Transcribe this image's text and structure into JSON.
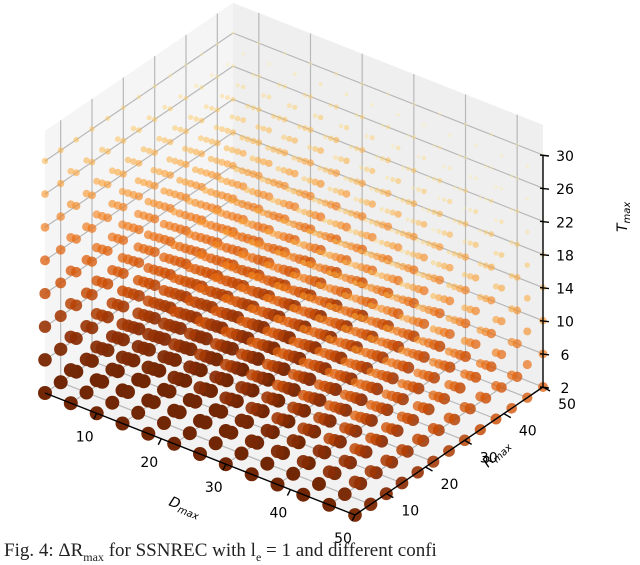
{
  "chart_data": {
    "type": "scatter",
    "projection": "3d",
    "title": "",
    "xlabel": "D_max",
    "ylabel": "R_max",
    "zlabel": "T_max",
    "x_ticks": [
      10,
      20,
      30,
      40,
      50
    ],
    "y_ticks": [
      10,
      20,
      30,
      40,
      50
    ],
    "z_ticks": [
      2,
      6,
      10,
      14,
      18,
      22,
      26,
      30
    ],
    "xlim": [
      2,
      50
    ],
    "ylim": [
      2,
      50
    ],
    "zlim": [
      2,
      30
    ],
    "grid": true,
    "grid_x_values": [
      6,
      14,
      22,
      30,
      38,
      46
    ],
    "grid_y_values": [
      6,
      14,
      22,
      30,
      38,
      46
    ],
    "grid_z_values": [
      2,
      6,
      10,
      14,
      18,
      22,
      26,
      30
    ],
    "colormap": "YlOrBr",
    "marker_size_and_color_encode": "ΔR_max (larger/darker = higher)",
    "description": "Grid of configurations (D_max, R_max, T_max); point size and color intensity increase as T_max decreases and D_max, R_max are small; darkest, largest points near low T_max, D_max 10–30, R_max 2–20."
  },
  "axes": {
    "x_label_main": "D",
    "x_label_sub": "max",
    "y_label_main": "R",
    "y_label_sub": "max",
    "z_label_main": "T",
    "z_label_sub": "max",
    "x_tick_labels": [
      "10",
      "20",
      "30",
      "40",
      "50"
    ],
    "y_tick_labels": [
      "10",
      "20",
      "30",
      "40",
      "50"
    ],
    "z_tick_labels": [
      "2",
      "6",
      "10",
      "14",
      "18",
      "22",
      "26",
      "30"
    ]
  },
  "caption": {
    "text": "Fig. 4: ΔR",
    "sub": "max",
    "rest": " for SSNREC with l",
    "sub2": "e",
    "rest2": " = 1 and different confi"
  }
}
